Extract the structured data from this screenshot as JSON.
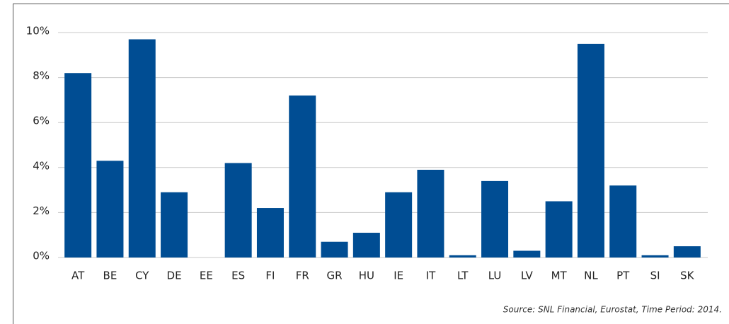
{
  "chart_data": {
    "type": "bar",
    "categories": [
      "AT",
      "BE",
      "CY",
      "DE",
      "EE",
      "ES",
      "FI",
      "FR",
      "GR",
      "HU",
      "IE",
      "IT",
      "LT",
      "LU",
      "LV",
      "MT",
      "NL",
      "PT",
      "SI",
      "SK"
    ],
    "values": [
      8.2,
      4.3,
      9.7,
      2.9,
      0,
      4.2,
      2.2,
      7.2,
      0.7,
      1.1,
      2.9,
      3.9,
      0.1,
      3.4,
      0.3,
      2.5,
      9.5,
      3.2,
      0.1,
      0.5
    ],
    "color": "#004d93",
    "ylim": [
      0,
      10
    ],
    "yticks": [
      {
        "value": 0,
        "label": "0%"
      },
      {
        "value": 2,
        "label": "2%"
      },
      {
        "value": 4,
        "label": "4%"
      },
      {
        "value": 6,
        "label": "6%"
      },
      {
        "value": 8,
        "label": "8%"
      },
      {
        "value": 10,
        "label": "10%"
      }
    ],
    "grid": true,
    "source": "Source: SNL Financial, Eurostat, Time Period: 2014."
  }
}
